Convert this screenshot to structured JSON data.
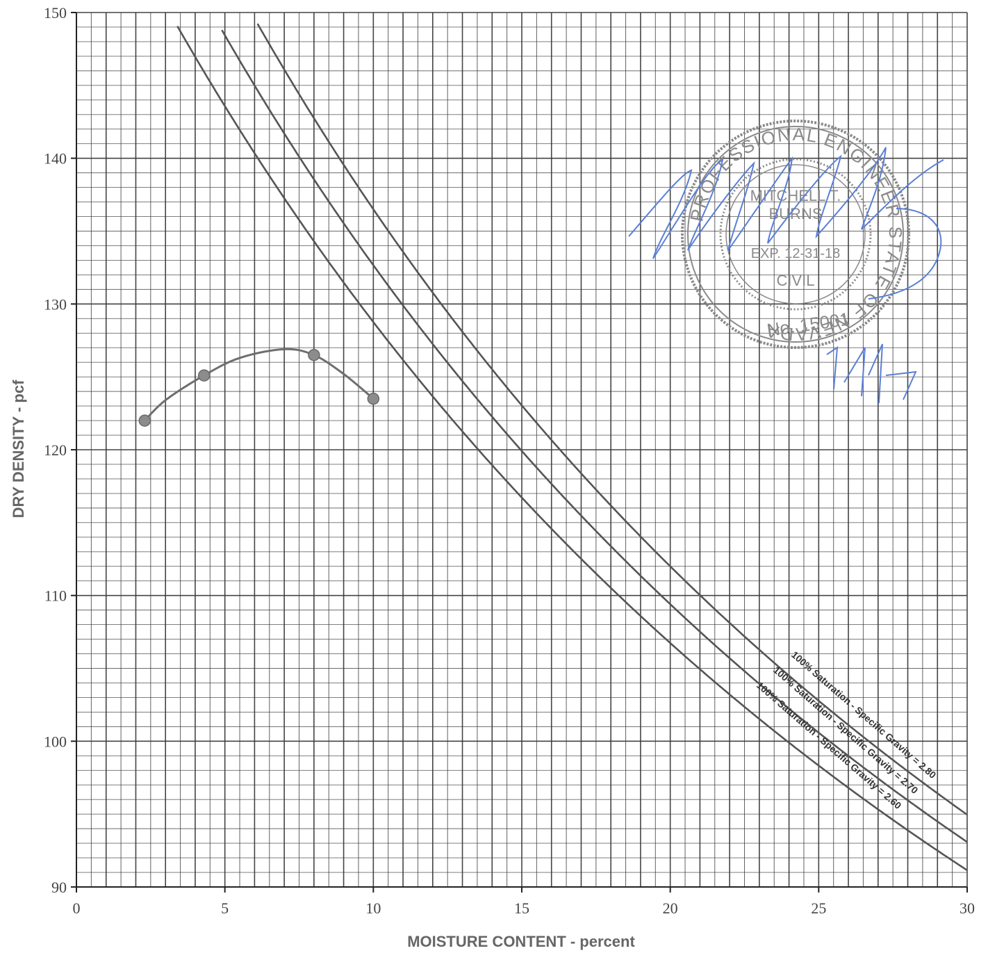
{
  "chart_data": {
    "type": "line",
    "title": "",
    "xlabel": "MOISTURE CONTENT - percent",
    "ylabel": "DRY DENSITY - pcf",
    "xlim": [
      0,
      30
    ],
    "ylim": [
      90,
      150
    ],
    "x_ticks": [
      "0",
      "5",
      "10",
      "15",
      "20",
      "25",
      "30"
    ],
    "y_ticks": [
      "90",
      "100",
      "110",
      "120",
      "130",
      "140",
      "150"
    ],
    "grid": true,
    "series": [
      {
        "name": "",
        "type": "scatter-with-curve",
        "x": [
          2.3,
          4.3,
          8.0,
          10.0
        ],
        "y": [
          122.0,
          125.1,
          126.5,
          123.5
        ],
        "curve_x": [
          2.3,
          3.0,
          4.3,
          5.5,
          7.0,
          8.0,
          9.0,
          10.0
        ],
        "curve_y": [
          122.0,
          123.4,
          125.1,
          126.3,
          126.9,
          126.5,
          125.2,
          123.5
        ]
      },
      {
        "name": "100% Saturation - Specific Gravity = 2.80",
        "specific_gravity": 2.8,
        "x_range": [
          6.1,
          30
        ],
        "y_at_x_end": 94.8
      },
      {
        "name": "100% Saturation - Specific Gravity = 2.70",
        "specific_gravity": 2.7,
        "x_range": [
          4.9,
          30
        ],
        "y_at_x_end": 92.9
      },
      {
        "name": "100% Saturation - Specific Gravity = 2.60",
        "specific_gravity": 2.6,
        "x_range": [
          3.4,
          30
        ],
        "y_at_x_end": 91.0
      }
    ]
  },
  "stamp": {
    "ring_text": "PROFESSIONAL ENGINEER STATE OF NEVADA",
    "name_line1": "MITCHELL T.",
    "name_line2": "BURNS",
    "expiry": "EXP. 12-31-18",
    "discipline": "CIVIL",
    "number": "No. 15001",
    "date_handwritten": "2/1/17"
  },
  "colors": {
    "grid": "#3a3a3a",
    "curve": "#6e6e6e",
    "point": "#8c8c8c",
    "stamp": "#8a8a8a",
    "signature_ink": "#5a7fd6"
  }
}
